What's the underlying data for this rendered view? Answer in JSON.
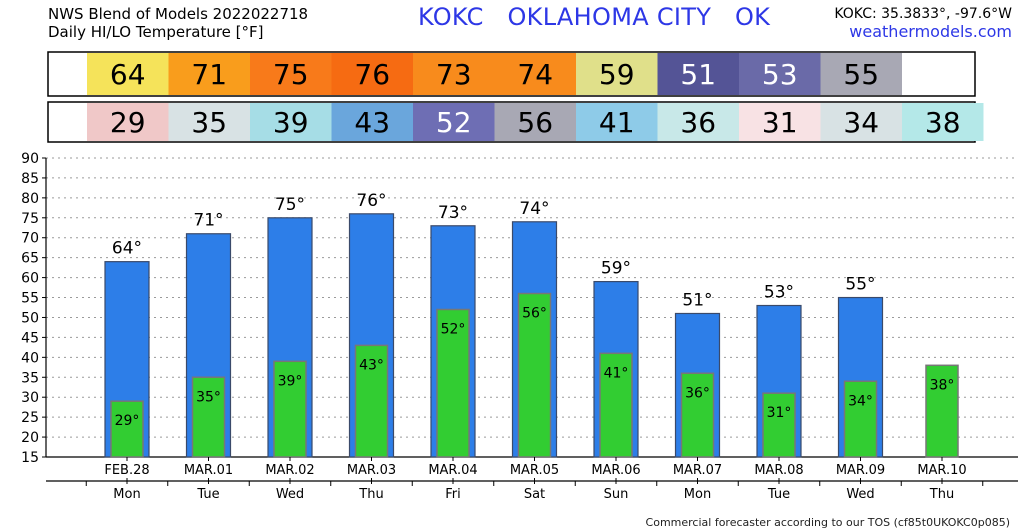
{
  "header": {
    "title_line1": "NWS Blend of Models 2022022718",
    "title_line2": "Daily HI/LO Temperature [°F]",
    "station": "KOKC   OKLAHOMA CITY   OK",
    "coords": "KOKC: 35.3833°, -97.6°W",
    "site": "weathermodels.com"
  },
  "footer": "Commercial forecaster according to our TOS (cf85t0UKOKC0p085)",
  "colors": {
    "hi_bar": "#2d7ee8",
    "lo_bar": "#32cd32",
    "hi_boxes": [
      "#f5e35a",
      "#f99d1c",
      "#f87a1a",
      "#f66b12",
      "#f88b1c",
      "#f88b1c",
      "#e0e08a",
      "#545496",
      "#6a6aa8",
      "#a8a8b4"
    ],
    "lo_boxes": [
      "#f0c8c8",
      "#d8e2e4",
      "#a6dde6",
      "#6aa6dc",
      "#6e6eb4",
      "#a8a8b4",
      "#8ecbe8",
      "#c8e8e8",
      "#f8e2e4",
      "#d8e2e4",
      "#b4e8e8"
    ]
  },
  "chart_data": {
    "type": "bar",
    "categories": [
      "FEB.28",
      "MAR.01",
      "MAR.02",
      "MAR.03",
      "MAR.04",
      "MAR.05",
      "MAR.06",
      "MAR.07",
      "MAR.08",
      "MAR.09",
      "MAR.10"
    ],
    "weekdays": [
      "Mon",
      "Tue",
      "Wed",
      "Thu",
      "Fri",
      "Sat",
      "Sun",
      "Mon",
      "Tue",
      "Wed",
      "Thu"
    ],
    "series": [
      {
        "values": [
          64,
          71,
          75,
          76,
          73,
          74,
          59,
          51,
          53,
          55,
          null
        ]
      },
      {
        "values": [
          29,
          35,
          39,
          43,
          52,
          56,
          41,
          36,
          31,
          34,
          38
        ]
      }
    ],
    "ylim": [
      15,
      90
    ],
    "yticks": [
      15,
      20,
      25,
      30,
      35,
      40,
      45,
      50,
      55,
      60,
      65,
      70,
      75,
      80,
      85,
      90
    ],
    "degree_symbol": "°",
    "grid": true
  }
}
